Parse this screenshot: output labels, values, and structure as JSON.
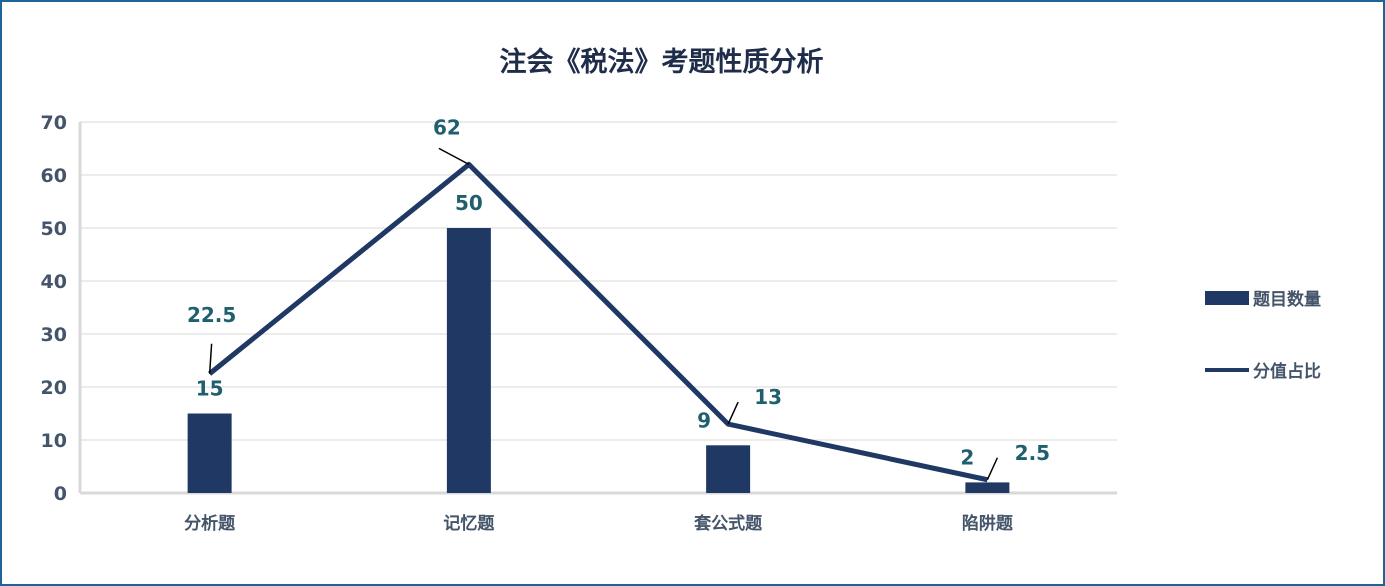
{
  "chart_data": {
    "type": "bar+line",
    "title": "注会《税法》考题性质分析",
    "categories": [
      "分析题",
      "记忆题",
      "套公式题",
      "陷阱题"
    ],
    "series": [
      {
        "name": "题目数量",
        "type": "bar",
        "values": [
          15,
          50,
          9,
          2
        ],
        "color": "#203864"
      },
      {
        "name": "分值占比",
        "type": "line",
        "values": [
          22.5,
          62,
          13,
          2.5
        ],
        "color": "#203864"
      }
    ],
    "ylim": [
      0,
      70
    ],
    "yticks": [
      0,
      10,
      20,
      30,
      40,
      50,
      60,
      70
    ],
    "grid": true,
    "legend": "right"
  }
}
